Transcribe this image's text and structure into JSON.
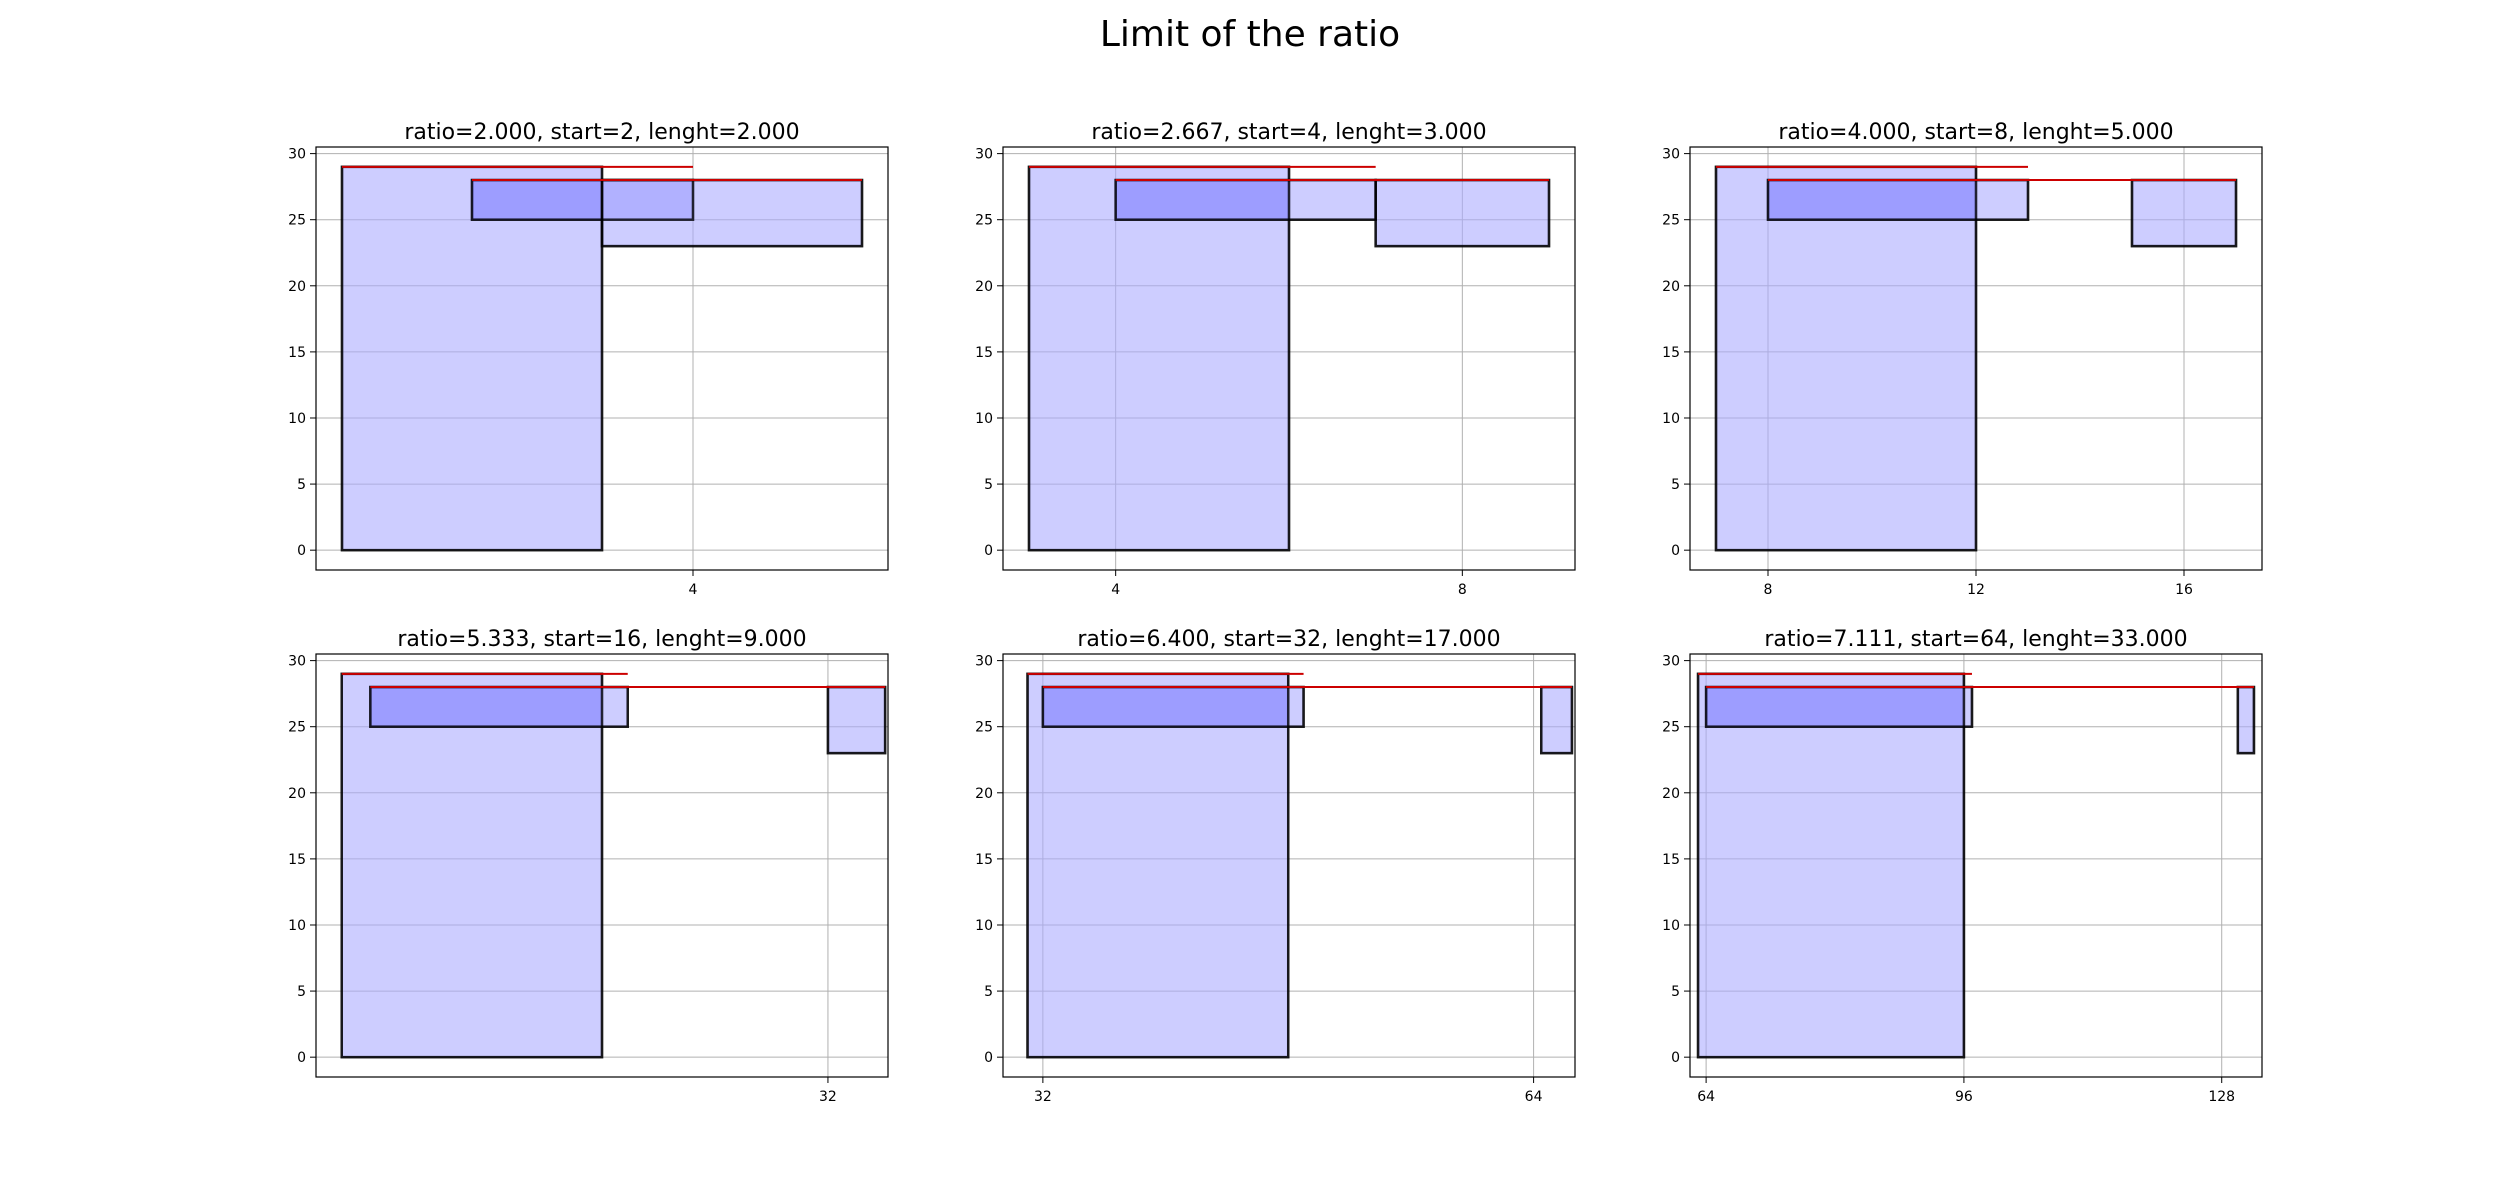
{
  "figure": {
    "title": "Limit of the ratio"
  },
  "colors": {
    "bar_fill": "#ccccff",
    "overlap_fill": "#a3a3ff",
    "bar_edge": "#000000",
    "reference_line": "#cc0000",
    "grid": "#b0b0b0"
  },
  "chart_data": [
    {
      "type": "bar",
      "title": "ratio=2.000, start=2, lenght=2.000",
      "ylim": [
        -1.5,
        30.5
      ],
      "xlim": [
        1.1,
        5.5
      ],
      "yticks": [
        0,
        5,
        10,
        15,
        20,
        25,
        30
      ],
      "xticks": [
        4
      ],
      "grid": true,
      "bars": [
        {
          "x0": 1.3,
          "x1": 3.3,
          "y0": 0,
          "y1": 29
        },
        {
          "x0": 2.3,
          "x1": 4.0,
          "y0": 25,
          "y1": 28
        },
        {
          "x0": 3.3,
          "x1": 5.3,
          "y0": 23,
          "y1": 28
        }
      ],
      "lines": [
        {
          "x0": 1.3,
          "x1": 4.0,
          "y": 29
        },
        {
          "x0": 2.3,
          "x1": 5.3,
          "y": 28
        }
      ]
    },
    {
      "type": "bar",
      "title": "ratio=2.667, start=4, lenght=3.000",
      "ylim": [
        -1.5,
        30.5
      ],
      "xlim": [
        2.7,
        9.3
      ],
      "yticks": [
        0,
        5,
        10,
        15,
        20,
        25,
        30
      ],
      "xticks": [
        4,
        8
      ],
      "grid": true,
      "bars": [
        {
          "x0": 3.0,
          "x1": 6.0,
          "y0": 0,
          "y1": 29
        },
        {
          "x0": 4.0,
          "x1": 7.0,
          "y0": 25,
          "y1": 28
        },
        {
          "x0": 7.0,
          "x1": 9.0,
          "y0": 23,
          "y1": 28
        }
      ],
      "lines": [
        {
          "x0": 3.0,
          "x1": 7.0,
          "y": 29
        },
        {
          "x0": 4.0,
          "x1": 9.0,
          "y": 28
        }
      ]
    },
    {
      "type": "bar",
      "title": "ratio=4.000, start=8, lenght=5.000",
      "ylim": [
        -1.5,
        30.5
      ],
      "xlim": [
        6.5,
        17.5
      ],
      "yticks": [
        0,
        5,
        10,
        15,
        20,
        25,
        30
      ],
      "xticks": [
        8,
        12,
        16
      ],
      "grid": true,
      "bars": [
        {
          "x0": 7.0,
          "x1": 12.0,
          "y0": 0,
          "y1": 29
        },
        {
          "x0": 8.0,
          "x1": 13.0,
          "y0": 25,
          "y1": 28
        },
        {
          "x0": 15.0,
          "x1": 17.0,
          "y0": 23,
          "y1": 28
        }
      ],
      "lines": [
        {
          "x0": 7.0,
          "x1": 13.0,
          "y": 29
        },
        {
          "x0": 8.0,
          "x1": 17.0,
          "y": 28
        }
      ]
    },
    {
      "type": "bar",
      "title": "ratio=5.333, start=16, lenght=9.000",
      "ylim": [
        -1.5,
        30.5
      ],
      "xlim": [
        14.1,
        34.1
      ],
      "yticks": [
        0,
        5,
        10,
        15,
        20,
        25,
        30
      ],
      "xticks": [
        32
      ],
      "grid": true,
      "bars": [
        {
          "x0": 15.0,
          "x1": 24.1,
          "y0": 0,
          "y1": 29
        },
        {
          "x0": 16.0,
          "x1": 25.0,
          "y0": 25,
          "y1": 28
        },
        {
          "x0": 32.0,
          "x1": 34.0,
          "y0": 23,
          "y1": 28
        }
      ],
      "lines": [
        {
          "x0": 15.0,
          "x1": 25.0,
          "y": 29
        },
        {
          "x0": 16.0,
          "x1": 34.0,
          "y": 28
        }
      ]
    },
    {
      "type": "bar",
      "title": "ratio=6.400, start=32, lenght=17.000",
      "ylim": [
        -1.5,
        30.5
      ],
      "xlim": [
        29.4,
        66.7
      ],
      "yticks": [
        0,
        5,
        10,
        15,
        20,
        25,
        30
      ],
      "xticks": [
        32,
        64
      ],
      "grid": true,
      "bars": [
        {
          "x0": 31.0,
          "x1": 48.0,
          "y0": 0,
          "y1": 29
        },
        {
          "x0": 32.0,
          "x1": 49.0,
          "y0": 25,
          "y1": 28
        },
        {
          "x0": 64.5,
          "x1": 66.5,
          "y0": 23,
          "y1": 28
        }
      ],
      "lines": [
        {
          "x0": 31.0,
          "x1": 49.0,
          "y": 29
        },
        {
          "x0": 32.0,
          "x1": 66.5,
          "y": 28
        }
      ]
    },
    {
      "type": "bar",
      "title": "ratio=7.111, start=64, lenght=33.000",
      "ylim": [
        -1.5,
        30.5
      ],
      "xlim": [
        62.0,
        133.0
      ],
      "yticks": [
        0,
        5,
        10,
        15,
        20,
        25,
        30
      ],
      "xticks": [
        64,
        96,
        128
      ],
      "grid": true,
      "bars": [
        {
          "x0": 63.0,
          "x1": 96.0,
          "y0": 0,
          "y1": 29
        },
        {
          "x0": 64.0,
          "x1": 97.0,
          "y0": 25,
          "y1": 28
        },
        {
          "x0": 130.0,
          "x1": 132.0,
          "y0": 23,
          "y1": 28
        }
      ],
      "lines": [
        {
          "x0": 63.0,
          "x1": 97.0,
          "y": 29
        },
        {
          "x0": 64.0,
          "x1": 132.0,
          "y": 28
        }
      ]
    }
  ]
}
